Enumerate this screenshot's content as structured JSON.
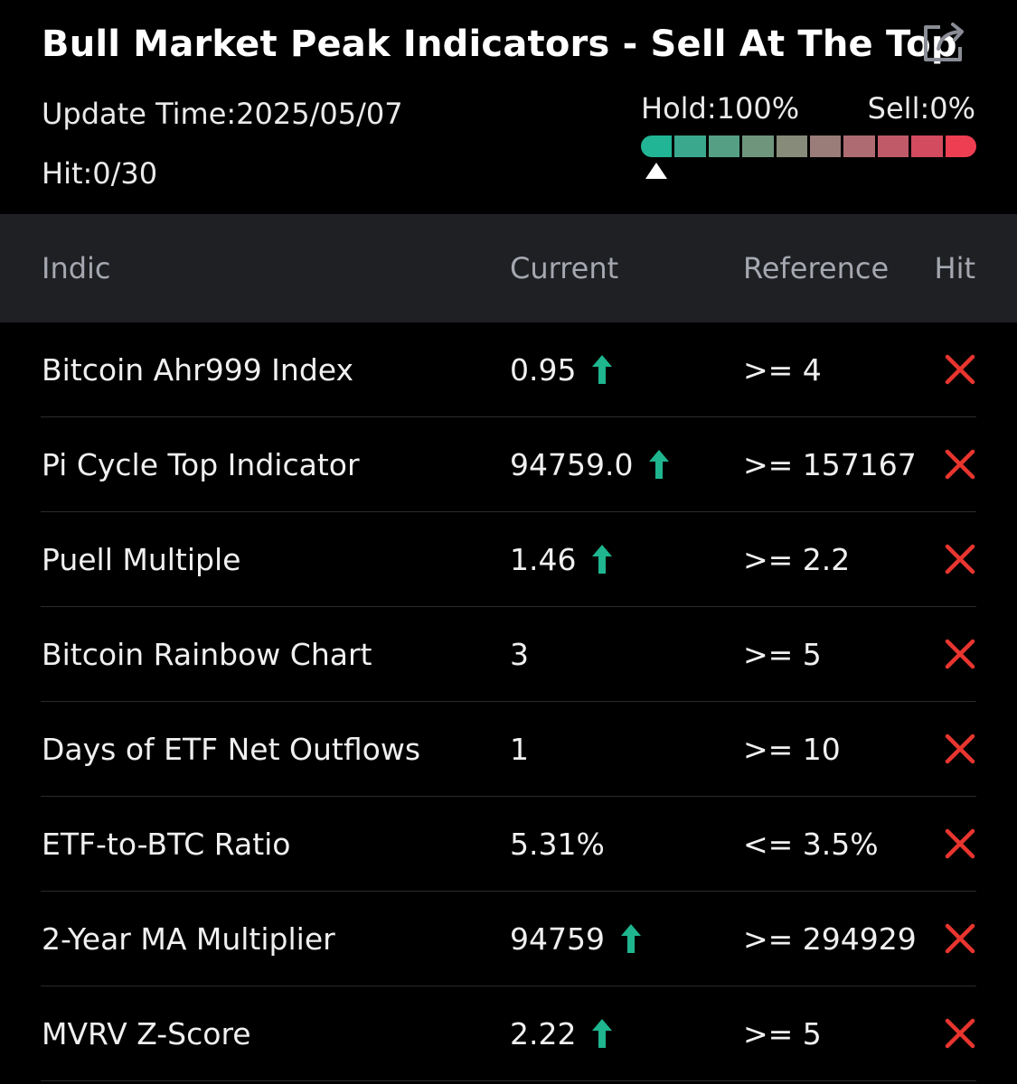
{
  "header": {
    "title": "Bull Market Peak Indicators - Sell At The Top",
    "update_time": "Update Time:2025/05/07",
    "hit_count": "Hit:0/30",
    "share_icon": "share-icon"
  },
  "gauge": {
    "hold_label": "Hold:100%",
    "sell_label": "Sell:0%",
    "hold_percent": 100,
    "sell_percent": 0,
    "segment_colors": [
      "#22b595",
      "#3aa88c",
      "#55a084",
      "#6f967d",
      "#878b7a",
      "#9a7c78",
      "#ae6b72",
      "#c05a68",
      "#d24b5e",
      "#ee3e52"
    ]
  },
  "table": {
    "columns": {
      "indic": "Indic",
      "current": "Current",
      "reference": "Reference",
      "hit": "Hit"
    },
    "rows": [
      {
        "name": "Bitcoin Ahr999 Index",
        "current": "0.95",
        "trend": "up",
        "reference": ">= 4",
        "hit": false
      },
      {
        "name": "Pi Cycle Top Indicator",
        "current": "94759.0",
        "trend": "up",
        "reference": ">= 157167",
        "hit": false
      },
      {
        "name": "Puell Multiple",
        "current": "1.46",
        "trend": "up",
        "reference": ">= 2.2",
        "hit": false
      },
      {
        "name": "Bitcoin Rainbow Chart",
        "current": "3",
        "trend": "",
        "reference": ">= 5",
        "hit": false
      },
      {
        "name": "Days of ETF Net Outflows",
        "current": "1",
        "trend": "",
        "reference": ">= 10",
        "hit": false
      },
      {
        "name": "ETF-to-BTC Ratio",
        "current": "5.31%",
        "trend": "",
        "reference": "<= 3.5%",
        "hit": false
      },
      {
        "name": "2-Year MA Multiplier",
        "current": "94759",
        "trend": "up",
        "reference": ">= 294929",
        "hit": false
      },
      {
        "name": "MVRV Z-Score",
        "current": "2.22",
        "trend": "up",
        "reference": ">= 5",
        "hit": false
      }
    ]
  },
  "colors": {
    "up_arrow": "#1fb58f",
    "miss_mark": "#e9352f"
  }
}
